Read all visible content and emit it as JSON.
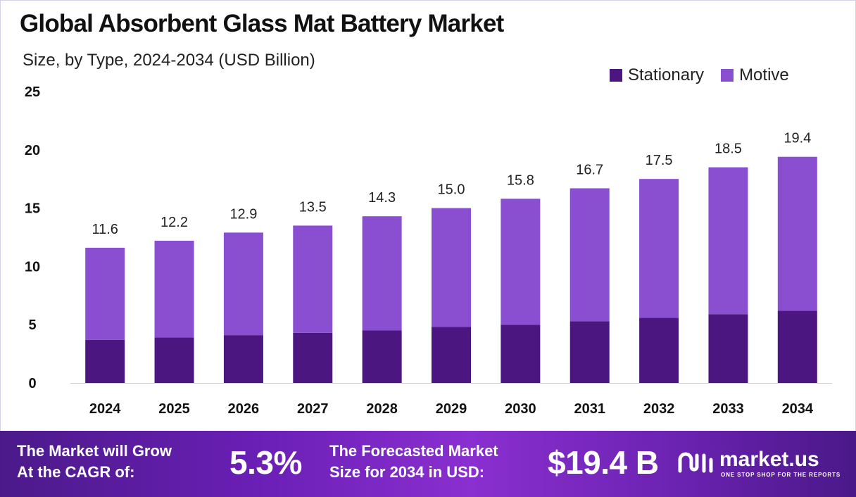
{
  "header": {
    "title": "Global Absorbent Glass Mat Battery Market",
    "subtitle": "Size, by Type, 2024-2034 (USD Billion)"
  },
  "legend": [
    {
      "label": "Stationary",
      "color": "#4c1680"
    },
    {
      "label": "Motive",
      "color": "#8a4fd1"
    }
  ],
  "chart_data": {
    "type": "bar",
    "stacked": true,
    "title": "Global Absorbent Glass Mat Battery Market",
    "subtitle": "Size, by Type, 2024-2034 (USD Billion)",
    "categories": [
      "2024",
      "2025",
      "2026",
      "2027",
      "2028",
      "2029",
      "2030",
      "2031",
      "2032",
      "2033",
      "2034"
    ],
    "series": [
      {
        "name": "Stationary",
        "color": "#4c1680",
        "values": [
          3.7,
          3.9,
          4.1,
          4.3,
          4.5,
          4.8,
          5.0,
          5.3,
          5.6,
          5.9,
          6.2
        ]
      },
      {
        "name": "Motive",
        "color": "#8a4fd1",
        "values": [
          7.9,
          8.3,
          8.8,
          9.2,
          9.8,
          10.2,
          10.8,
          11.4,
          11.9,
          12.6,
          13.2
        ]
      }
    ],
    "totals": [
      "11.6",
      "12.2",
      "12.9",
      "13.5",
      "14.3",
      "15.0",
      "15.8",
      "16.7",
      "17.5",
      "18.5",
      "19.4"
    ],
    "yticks": [
      "0",
      "5",
      "10",
      "15",
      "20",
      "25"
    ],
    "ylim": [
      0,
      25
    ],
    "xlabel": "",
    "ylabel": "",
    "legend_position": "top-right",
    "grid": false
  },
  "banner": {
    "cagr_label_line1": "The Market will Grow",
    "cagr_label_line2": "At the CAGR of:",
    "cagr_value": "5.3%",
    "forecast_label_line1": "The Forecasted Market",
    "forecast_label_line2": "Size for 2034 in USD:",
    "forecast_value": "$19.4 B",
    "logo_text": "market.us",
    "logo_tagline": "ONE STOP SHOP FOR THE REPORTS"
  }
}
